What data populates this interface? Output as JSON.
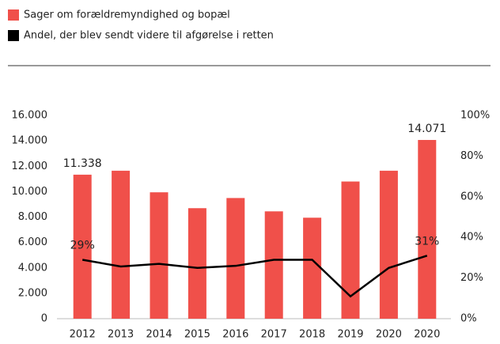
{
  "chart_data": {
    "type": "bar_line",
    "categories": [
      "2012",
      "2013",
      "2014",
      "2015",
      "2016",
      "2017",
      "2018",
      "2019",
      "2020",
      "2020"
    ],
    "series": [
      {
        "name": "Sager om forældremyndighed og bopæl",
        "color": "#f0504a",
        "type": "bar",
        "values": [
          11338,
          11650,
          9950,
          8700,
          9500,
          8450,
          7950,
          10800,
          11650,
          14071
        ],
        "value_labels": [
          "11.338",
          null,
          null,
          null,
          null,
          null,
          null,
          null,
          null,
          "14.071"
        ]
      },
      {
        "name": "Andel, der blev sendt videre til afgørelse i retten",
        "color": "#000000",
        "type": "line",
        "axis": "y2",
        "values": [
          29,
          25.7,
          27,
          25,
          26,
          29,
          29,
          11,
          25,
          31
        ],
        "value_labels": [
          "29%",
          null,
          null,
          null,
          null,
          null,
          null,
          null,
          null,
          "31%"
        ]
      }
    ],
    "ylim": [
      0,
      16000
    ],
    "yticks": [
      0,
      {
        "value": 2000,
        "label": "2.000"
      },
      {
        "value": 4000,
        "label": "4.000"
      },
      {
        "value": 6000,
        "label": "6.000"
      },
      {
        "value": 8000,
        "label": "8.000"
      },
      {
        "value": 10000,
        "label": "10.000"
      },
      {
        "value": 12000,
        "label": "12.000"
      },
      {
        "value": 14000,
        "label": "14.000"
      },
      {
        "value": 16000,
        "label": "16.000"
      }
    ],
    "y2lim": [
      0,
      100
    ],
    "y2ticks": [
      {
        "value": 0,
        "label": "0%"
      },
      {
        "value": 20,
        "label": "20%"
      },
      {
        "value": 40,
        "label": "40%"
      },
      {
        "value": 60,
        "label": "60%"
      },
      {
        "value": 80,
        "label": "80%"
      },
      {
        "value": 100,
        "label": "100%"
      }
    ],
    "legend": "top-left"
  }
}
